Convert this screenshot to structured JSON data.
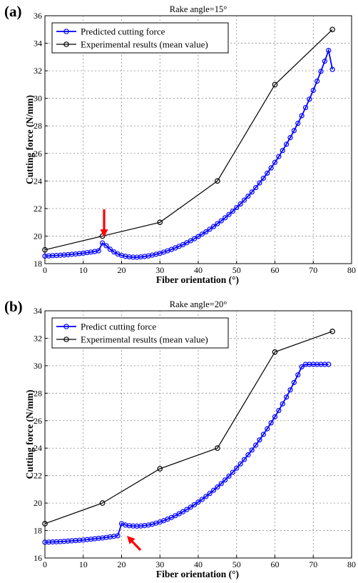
{
  "chart_data": [
    {
      "panel": "(a)",
      "type": "line",
      "title": "Rake angle=15°",
      "xlabel": "Fiber orientation (°)",
      "ylabel": "Cutting force (N/mm)",
      "xlim": [
        0,
        80
      ],
      "ylim": [
        18,
        36
      ],
      "xticks": [
        0,
        10,
        20,
        30,
        40,
        50,
        60,
        70,
        80
      ],
      "yticks": [
        18,
        20,
        22,
        24,
        26,
        28,
        30,
        32,
        34,
        36
      ],
      "grid": true,
      "legend_position": "top-left",
      "annotation": "red arrow pointing at x=15",
      "series": [
        {
          "name": "Predicted cutting force",
          "color": "#0000ff",
          "marker": "circle",
          "x": [
            0,
            1,
            2,
            3,
            4,
            5,
            6,
            7,
            8,
            9,
            10,
            11,
            12,
            13,
            14,
            15,
            16,
            17,
            18,
            19,
            20,
            21,
            22,
            23,
            24,
            25,
            26,
            27,
            28,
            29,
            30,
            31,
            32,
            33,
            34,
            35,
            36,
            37,
            38,
            39,
            40,
            41,
            42,
            43,
            44,
            45,
            46,
            47,
            48,
            49,
            50,
            51,
            52,
            53,
            54,
            55,
            56,
            57,
            58,
            59,
            60,
            61,
            62,
            63,
            64,
            65,
            66,
            67,
            68,
            69,
            70,
            71,
            72,
            73,
            74,
            75
          ],
          "y": [
            18.55,
            18.56,
            18.58,
            18.59,
            18.61,
            18.63,
            18.65,
            18.68,
            18.7,
            18.73,
            18.76,
            18.8,
            18.84,
            18.88,
            18.93,
            19.5,
            19.3,
            19.05,
            18.85,
            18.7,
            18.6,
            18.53,
            18.49,
            18.47,
            18.47,
            18.49,
            18.52,
            18.56,
            18.62,
            18.68,
            18.75,
            18.84,
            18.93,
            19.03,
            19.14,
            19.26,
            19.38,
            19.52,
            19.66,
            19.81,
            19.97,
            20.14,
            20.31,
            20.5,
            20.69,
            20.9,
            21.11,
            21.33,
            21.57,
            21.81,
            22.07,
            22.33,
            22.61,
            22.9,
            23.2,
            23.52,
            23.86,
            24.2,
            24.57,
            24.95,
            25.35,
            25.77,
            26.21,
            26.67,
            27.15,
            27.66,
            28.19,
            28.74,
            29.33,
            29.94,
            30.58,
            31.25,
            31.96,
            32.7,
            33.48,
            32.1
          ]
        },
        {
          "name": "Experimental results (mean value)",
          "color": "#000000",
          "marker": "circle",
          "x": [
            0,
            15,
            30,
            45,
            60,
            75
          ],
          "y": [
            19,
            20,
            21,
            24,
            31,
            35
          ]
        }
      ]
    },
    {
      "panel": "(b)",
      "type": "line",
      "title": "Rake angle=20°",
      "xlabel": "Fiber orientation (°)",
      "ylabel": "Cutting force (N/mm)",
      "xlim": [
        0,
        80
      ],
      "ylim": [
        16,
        34
      ],
      "xticks": [
        0,
        10,
        20,
        30,
        40,
        50,
        60,
        70,
        80
      ],
      "yticks": [
        16,
        18,
        20,
        22,
        24,
        26,
        28,
        30,
        32,
        34
      ],
      "grid": true,
      "legend_position": "top-left",
      "annotation": "red arrow pointing at x=20",
      "series": [
        {
          "name": "Predict cutting force",
          "color": "#0000ff",
          "marker": "circle",
          "x": [
            0,
            1,
            2,
            3,
            4,
            5,
            6,
            7,
            8,
            9,
            10,
            11,
            12,
            13,
            14,
            15,
            16,
            17,
            18,
            19,
            20,
            21,
            22,
            23,
            24,
            25,
            26,
            27,
            28,
            29,
            30,
            31,
            32,
            33,
            34,
            35,
            36,
            37,
            38,
            39,
            40,
            41,
            42,
            43,
            44,
            45,
            46,
            47,
            48,
            49,
            50,
            51,
            52,
            53,
            54,
            55,
            56,
            57,
            58,
            59,
            60,
            61,
            62,
            63,
            64,
            65,
            66,
            67,
            68,
            69,
            70,
            71,
            72,
            73,
            74
          ],
          "y": [
            17.15,
            17.16,
            17.17,
            17.18,
            17.19,
            17.21,
            17.23,
            17.25,
            17.27,
            17.29,
            17.31,
            17.34,
            17.37,
            17.4,
            17.43,
            17.46,
            17.5,
            17.54,
            17.58,
            17.62,
            18.5,
            18.4,
            18.35,
            18.33,
            18.32,
            18.33,
            18.36,
            18.4,
            18.46,
            18.54,
            18.62,
            18.72,
            18.83,
            18.95,
            19.08,
            19.22,
            19.37,
            19.53,
            19.7,
            19.88,
            20.07,
            20.27,
            20.48,
            20.7,
            20.93,
            21.17,
            21.42,
            21.68,
            21.96,
            22.24,
            22.54,
            22.85,
            23.17,
            23.51,
            23.86,
            24.22,
            24.6,
            25.0,
            25.41,
            25.84,
            26.28,
            26.74,
            27.22,
            27.72,
            28.24,
            28.78,
            29.34,
            29.92,
            30.1,
            30.1,
            30.1,
            30.1,
            30.1,
            30.1,
            30.1
          ]
        },
        {
          "name": "Experimental results (mean value)",
          "color": "#000000",
          "marker": "circle",
          "x": [
            0,
            15,
            30,
            45,
            60,
            75
          ],
          "y": [
            18.5,
            20,
            22.5,
            24,
            31,
            32.5
          ]
        }
      ]
    }
  ]
}
